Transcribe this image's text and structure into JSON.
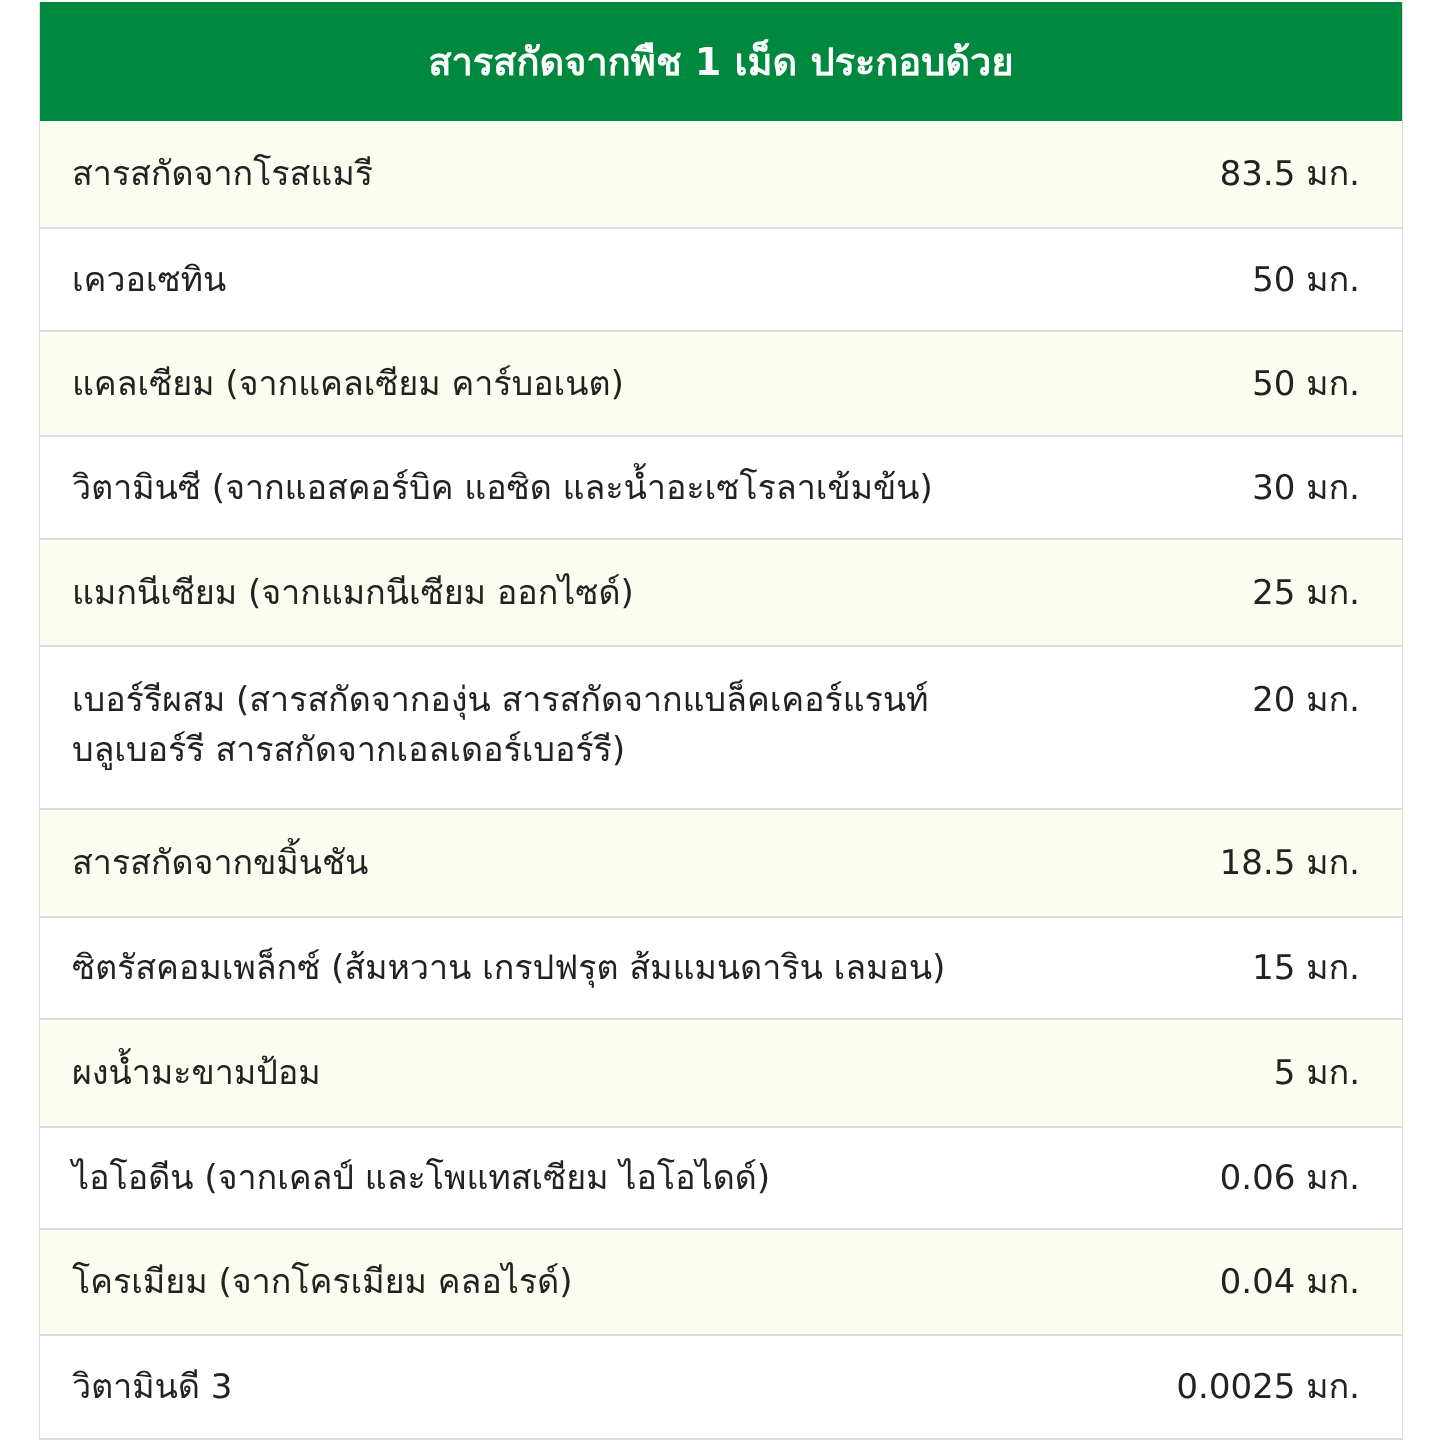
{
  "header": {
    "title": "สารสกัดจากพืช 1 เม็ด ประกอบด้วย"
  },
  "colors": {
    "header_bg": "#00883f",
    "row_alt_bg": "#fbfdf1"
  },
  "rows": [
    {
      "name": "สารสกัดจากโรสแมรี",
      "amount": "83.5 มก."
    },
    {
      "name": "เควอเซทิน",
      "amount": "50 มก."
    },
    {
      "name": "แคลเซียม (จากแคลเซียม คาร์บอเนต)",
      "amount": "50 มก."
    },
    {
      "name": "วิตามินซี (จากแอสคอร์บิค แอซิด และน้ำอะเซโรลาเข้มข้น)",
      "amount": "30 มก."
    },
    {
      "name": "แมกนีเซียม (จากแมกนีเซียม ออกไซด์)",
      "amount": "25 มก."
    },
    {
      "name": "เบอร์รีผสม (สารสกัดจากองุ่น สารสกัดจากแบล็คเคอร์แรนท์ บลูเบอร์รี สารสกัดจากเอลเดอร์เบอร์รี)",
      "amount": "20 มก."
    },
    {
      "name": "สารสกัดจากขมิ้นชัน",
      "amount": "18.5 มก."
    },
    {
      "name": "ซิตรัสคอมเพล็กซ์ (ส้มหวาน เกรปฟรุต ส้มแมนดาริน เลมอน)",
      "amount": "15 มก."
    },
    {
      "name": "ผงน้ำมะขามป้อม",
      "amount": "5 มก."
    },
    {
      "name": "ไอโอดีน (จากเคลป์ และโพแทสเซียม ไอโอไดด์)",
      "amount": "0.06 มก."
    },
    {
      "name": "โครเมียม (จากโครเมียม คลอไรด์)",
      "amount": "0.04 มก."
    },
    {
      "name": "วิตามินดี 3",
      "amount": "0.0025 มก."
    }
  ]
}
